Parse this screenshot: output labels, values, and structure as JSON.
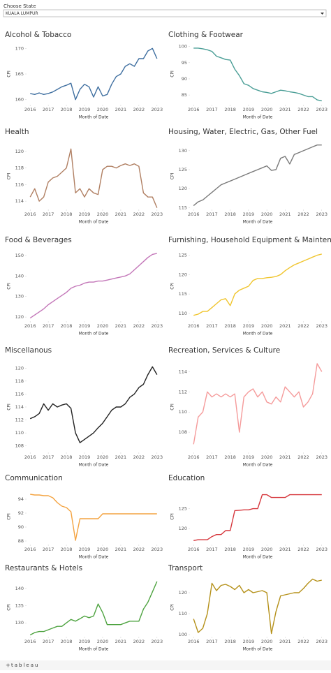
{
  "filter": {
    "label": "Choose State",
    "value": "KUALA LUMPUR"
  },
  "footer": "tableau",
  "chart_data": [
    {
      "type": "line",
      "title": "Alcohol & Tobacco",
      "x_label": "Month of Date",
      "y_label": "CPI",
      "color": "#3f6fa0",
      "xlim": [
        2015.8,
        2023.2
      ],
      "xticks": [
        2016,
        2017,
        2018,
        2019,
        2020,
        2021,
        2022,
        2023
      ],
      "ylim": [
        159,
        171
      ],
      "yticks": [
        160,
        165,
        170
      ],
      "x": [
        2016,
        2016.25,
        2016.5,
        2016.75,
        2017,
        2017.25,
        2017.5,
        2017.75,
        2018,
        2018.25,
        2018.5,
        2018.75,
        2019,
        2019.25,
        2019.5,
        2019.75,
        2020,
        2020.25,
        2020.5,
        2020.75,
        2021,
        2021.25,
        2021.5,
        2021.75,
        2022,
        2022.25,
        2022.5,
        2022.75,
        2023
      ],
      "values": [
        161.2,
        161,
        161.3,
        161,
        161.2,
        161.5,
        162,
        162.5,
        162.8,
        163.2,
        160,
        162,
        163,
        162.5,
        160.5,
        162.5,
        160.7,
        161,
        163,
        164.5,
        165,
        166.5,
        167,
        166.5,
        168,
        168,
        169.5,
        170,
        168
      ]
    },
    {
      "type": "line",
      "title": "Clothing & Footwear",
      "x_label": "Month of Date",
      "y_label": "CPI",
      "color": "#4a9e96",
      "xlim": [
        2015.8,
        2023.2
      ],
      "xticks": [
        2016,
        2017,
        2018,
        2019,
        2020,
        2021,
        2022,
        2023
      ],
      "ylim": [
        82,
        101
      ],
      "yticks": [
        85,
        90,
        95,
        100
      ],
      "x": [
        2016,
        2016.25,
        2016.5,
        2016.75,
        2017,
        2017.25,
        2017.5,
        2017.75,
        2018,
        2018.25,
        2018.5,
        2018.75,
        2019,
        2019.25,
        2019.5,
        2019.75,
        2020,
        2020.25,
        2020.5,
        2020.75,
        2021,
        2021.25,
        2021.5,
        2021.75,
        2022,
        2022.25,
        2022.5,
        2022.75,
        2023
      ],
      "values": [
        99.5,
        99.5,
        99.3,
        99,
        98.5,
        97,
        96.5,
        96,
        95.8,
        93,
        91,
        88.5,
        88,
        87,
        86.5,
        86,
        85.8,
        85.5,
        86,
        86.5,
        86.3,
        86,
        85.8,
        85.5,
        85,
        84.5,
        84.5,
        83.5,
        83.2
      ]
    },
    {
      "type": "line",
      "title": "Health",
      "x_label": "Month of Date",
      "y_label": "CPI",
      "color": "#b07f62",
      "xlim": [
        2015.8,
        2023.2
      ],
      "xticks": [
        2016,
        2017,
        2018,
        2019,
        2020,
        2021,
        2022,
        2023
      ],
      "ylim": [
        113,
        121
      ],
      "yticks": [
        114,
        116,
        118,
        120
      ],
      "x": [
        2016,
        2016.25,
        2016.5,
        2016.75,
        2017,
        2017.25,
        2017.5,
        2017.75,
        2018,
        2018.25,
        2018.5,
        2018.75,
        2019,
        2019.25,
        2019.5,
        2019.75,
        2020,
        2020.25,
        2020.5,
        2020.75,
        2021,
        2021.25,
        2021.5,
        2021.75,
        2022,
        2022.25,
        2022.5,
        2022.75,
        2023
      ],
      "values": [
        114.5,
        115.5,
        114,
        114.5,
        116.3,
        116.8,
        117,
        117.5,
        118,
        120.3,
        115,
        115.5,
        114.5,
        115.5,
        115,
        114.8,
        117.8,
        118.2,
        118.2,
        118,
        118.3,
        118.5,
        118.3,
        118.5,
        118.2,
        115,
        114.5,
        114.5,
        113.2
      ]
    },
    {
      "type": "line",
      "title": "Housing, Water, Electric, Gas, Other Fuel",
      "x_label": "Month of Date",
      "y_label": "CPI",
      "color": "#7a7a7a",
      "xlim": [
        2015.8,
        2023.2
      ],
      "xticks": [
        2016,
        2017,
        2018,
        2019,
        2020,
        2021,
        2022,
        2023
      ],
      "ylim": [
        114.5,
        132
      ],
      "yticks": [
        115,
        120,
        125,
        130
      ],
      "x": [
        2016,
        2016.25,
        2016.5,
        2016.75,
        2017,
        2017.25,
        2017.5,
        2017.75,
        2018,
        2018.25,
        2018.5,
        2018.75,
        2019,
        2019.25,
        2019.5,
        2019.75,
        2020,
        2020.25,
        2020.5,
        2020.75,
        2021,
        2021.25,
        2021.5,
        2021.75,
        2022,
        2022.25,
        2022.5,
        2022.75,
        2023
      ],
      "values": [
        115.5,
        116.5,
        117,
        118,
        119,
        120,
        121,
        121.5,
        122,
        122.5,
        123,
        123.5,
        124,
        124.5,
        125,
        125.5,
        126,
        124.8,
        125,
        128,
        128.5,
        126.5,
        129,
        129.5,
        130,
        130.5,
        131,
        131.5,
        131.5
      ]
    },
    {
      "type": "line",
      "title": "Food & Beverages",
      "x_label": "Month of Date",
      "y_label": "CPI",
      "color": "#c376b8",
      "xlim": [
        2015.8,
        2023.2
      ],
      "xticks": [
        2016,
        2017,
        2018,
        2019,
        2020,
        2021,
        2022,
        2023
      ],
      "ylim": [
        118,
        152
      ],
      "yticks": [
        120,
        130,
        140,
        150
      ],
      "x": [
        2016,
        2016.25,
        2016.5,
        2016.75,
        2017,
        2017.25,
        2017.5,
        2017.75,
        2018,
        2018.25,
        2018.5,
        2018.75,
        2019,
        2019.25,
        2019.5,
        2019.75,
        2020,
        2020.25,
        2020.5,
        2020.75,
        2021,
        2021.25,
        2021.5,
        2021.75,
        2022,
        2022.25,
        2022.5,
        2022.75,
        2023
      ],
      "values": [
        119.5,
        121,
        122.5,
        124,
        126,
        127.5,
        129,
        130.5,
        132,
        134,
        135,
        135.5,
        136.5,
        137,
        137,
        137.5,
        137.5,
        138,
        138.5,
        139,
        139.5,
        140,
        141,
        143,
        145,
        147,
        149,
        150.5,
        151
      ]
    },
    {
      "type": "line",
      "title": "Furnishing, Household Equipment & Maintenance",
      "x_label": "Month of Date",
      "y_label": "CPI",
      "color": "#f0c52e",
      "xlim": [
        2015.8,
        2023.2
      ],
      "xticks": [
        2016,
        2017,
        2018,
        2019,
        2020,
        2021,
        2022,
        2023
      ],
      "ylim": [
        108,
        126
      ],
      "yticks": [
        110,
        115,
        120,
        125
      ],
      "x": [
        2016,
        2016.25,
        2016.5,
        2016.75,
        2017,
        2017.25,
        2017.5,
        2017.75,
        2018,
        2018.25,
        2018.5,
        2018.75,
        2019,
        2019.25,
        2019.5,
        2019.75,
        2020,
        2020.25,
        2020.5,
        2020.75,
        2021,
        2021.25,
        2021.5,
        2021.75,
        2022,
        2022.25,
        2022.5,
        2022.75,
        2023
      ],
      "values": [
        109.5,
        109.8,
        110.5,
        110.5,
        111.5,
        112.5,
        113.5,
        113.8,
        112,
        115,
        116,
        116.5,
        117,
        118.5,
        119,
        119,
        119.2,
        119.3,
        119.5,
        120,
        121,
        121.8,
        122.5,
        123,
        123.5,
        124,
        124.5,
        125,
        125.3
      ]
    },
    {
      "type": "line",
      "title": "Miscellanous",
      "x_label": "Month of Date",
      "y_label": "CPI",
      "color": "#222222",
      "xlim": [
        2015.8,
        2023.2
      ],
      "xticks": [
        2016,
        2017,
        2018,
        2019,
        2020,
        2021,
        2022,
        2023
      ],
      "ylim": [
        107,
        121
      ],
      "yticks": [
        108,
        110,
        112,
        114,
        116,
        118,
        120
      ],
      "x": [
        2016,
        2016.25,
        2016.5,
        2016.75,
        2017,
        2017.25,
        2017.5,
        2017.75,
        2018,
        2018.25,
        2018.5,
        2018.75,
        2019,
        2019.25,
        2019.5,
        2019.75,
        2020,
        2020.25,
        2020.5,
        2020.75,
        2021,
        2021.25,
        2021.5,
        2021.75,
        2022,
        2022.25,
        2022.5,
        2022.75,
        2023
      ],
      "values": [
        112.2,
        112.5,
        113,
        114.5,
        113.5,
        114.5,
        114,
        114.3,
        114.5,
        113.8,
        110,
        108.5,
        109,
        109.5,
        110,
        110.8,
        111.5,
        112.5,
        113.5,
        114,
        114,
        114.5,
        115.5,
        116,
        117,
        117.5,
        119,
        120.2,
        119
      ]
    },
    {
      "type": "line",
      "title": "Recreation, Services & Culture",
      "x_label": "Month of Date",
      "y_label": "CPI",
      "color": "#f59b9b",
      "xlim": [
        2015.8,
        2023.2
      ],
      "xticks": [
        2016,
        2017,
        2018,
        2019,
        2020,
        2021,
        2022,
        2023
      ],
      "ylim": [
        106,
        115
      ],
      "yticks": [
        108,
        110,
        112,
        114
      ],
      "x": [
        2016,
        2016.25,
        2016.5,
        2016.75,
        2017,
        2017.25,
        2017.5,
        2017.75,
        2018,
        2018.25,
        2018.5,
        2018.75,
        2019,
        2019.25,
        2019.5,
        2019.75,
        2020,
        2020.25,
        2020.5,
        2020.75,
        2021,
        2021.25,
        2021.5,
        2021.75,
        2022,
        2022.25,
        2022.5,
        2022.75,
        2023
      ],
      "values": [
        106.8,
        109.5,
        110,
        112,
        111.5,
        111.8,
        111.5,
        111.8,
        111.5,
        111.8,
        108,
        111.5,
        112,
        112.3,
        111.5,
        112,
        111,
        110.8,
        111.5,
        111,
        112.5,
        112,
        111.5,
        112,
        110.5,
        111,
        111.8,
        114.8,
        114
      ]
    },
    {
      "type": "line",
      "title": "Communication",
      "x_label": "Month of Date",
      "y_label": "CPI",
      "color": "#f4a340",
      "xlim": [
        2015.8,
        2023.2
      ],
      "xticks": [
        2016,
        2017,
        2018,
        2019,
        2020,
        2021,
        2022,
        2023
      ],
      "ylim": [
        87.5,
        95.5
      ],
      "yticks": [
        88,
        90,
        92,
        94
      ],
      "x": [
        2016,
        2016.25,
        2016.5,
        2016.75,
        2017,
        2017.25,
        2017.5,
        2017.75,
        2018,
        2018.25,
        2018.5,
        2018.75,
        2019,
        2019.25,
        2019.5,
        2019.75,
        2020,
        2020.25,
        2020.5,
        2020.75,
        2021,
        2021.25,
        2021.5,
        2021.75,
        2022,
        2022.25,
        2022.5,
        2022.75,
        2023
      ],
      "values": [
        94.7,
        94.6,
        94.6,
        94.5,
        94.5,
        94.2,
        93.5,
        93.0,
        92.8,
        92.2,
        88.1,
        91.2,
        91.2,
        91.2,
        91.2,
        91.2,
        91.9,
        91.9,
        91.9,
        91.9,
        91.9,
        91.9,
        91.9,
        91.9,
        91.9,
        91.9,
        91.9,
        91.9,
        91.9
      ]
    },
    {
      "type": "line",
      "title": "Education",
      "x_label": "Month of Date",
      "y_label": "CPI",
      "color": "#d6373d",
      "xlim": [
        2015.8,
        2023.2
      ],
      "xticks": [
        2016,
        2017,
        2018,
        2019,
        2020,
        2021,
        2022,
        2023
      ],
      "ylim": [
        116,
        130
      ],
      "yticks": [
        120,
        125
      ],
      "x": [
        2016,
        2016.25,
        2016.5,
        2016.75,
        2017,
        2017.25,
        2017.5,
        2017.75,
        2018,
        2018.25,
        2018.5,
        2018.75,
        2019,
        2019.25,
        2019.5,
        2019.75,
        2020,
        2020.25,
        2020.5,
        2020.75,
        2021,
        2021.25,
        2021.5,
        2021.75,
        2022,
        2022.25,
        2022.5,
        2022.75,
        2023
      ],
      "values": [
        117,
        117.2,
        117.2,
        117.2,
        118,
        118.5,
        118.5,
        119.5,
        119.5,
        124.5,
        124.6,
        124.7,
        124.7,
        125,
        125,
        128.5,
        128.5,
        127.8,
        127.8,
        127.8,
        127.8,
        128.5,
        128.5,
        128.5,
        128.5,
        128.5,
        128.5,
        128.5,
        128.5
      ]
    },
    {
      "type": "line",
      "title": "Restaurants & Hotels",
      "x_label": "Month of Date",
      "y_label": "CPI",
      "color": "#4ea340",
      "xlim": [
        2015.8,
        2023.2
      ],
      "xticks": [
        2016,
        2017,
        2018,
        2019,
        2020,
        2021,
        2022,
        2023
      ],
      "ylim": [
        126,
        143
      ],
      "yticks": [
        130,
        135,
        140
      ],
      "x": [
        2016,
        2016.25,
        2016.5,
        2016.75,
        2017,
        2017.25,
        2017.5,
        2017.75,
        2018,
        2018.25,
        2018.5,
        2018.75,
        2019,
        2019.25,
        2019.5,
        2019.75,
        2020,
        2020.25,
        2020.5,
        2020.75,
        2021,
        2021.25,
        2021.5,
        2021.75,
        2022,
        2022.25,
        2022.5,
        2022.75,
        2023
      ],
      "values": [
        126.5,
        127.2,
        127.5,
        127.5,
        128,
        128.5,
        129,
        129,
        130,
        131,
        130.5,
        131.2,
        132,
        131.5,
        132,
        135.5,
        133,
        129.5,
        129.5,
        129.5,
        129.5,
        130,
        130.5,
        130.5,
        130.5,
        134,
        136,
        139,
        142
      ]
    },
    {
      "type": "line",
      "title": "Transport",
      "x_label": "Month of Date",
      "y_label": "CPI",
      "color": "#b5911a",
      "xlim": [
        2015.8,
        2023.2
      ],
      "xticks": [
        2016,
        2017,
        2018,
        2019,
        2020,
        2021,
        2022,
        2023
      ],
      "ylim": [
        99,
        127
      ],
      "yticks": [
        100,
        110,
        120
      ],
      "x": [
        2016,
        2016.25,
        2016.5,
        2016.75,
        2017,
        2017.25,
        2017.5,
        2017.75,
        2018,
        2018.25,
        2018.5,
        2018.75,
        2019,
        2019.25,
        2019.5,
        2019.75,
        2020,
        2020.25,
        2020.5,
        2020.75,
        2021,
        2021.25,
        2021.5,
        2021.75,
        2022,
        2022.25,
        2022.5,
        2022.75,
        2023
      ],
      "values": [
        107.5,
        101,
        103,
        110,
        124.5,
        121,
        123.5,
        124,
        123,
        121.5,
        123.5,
        120,
        121.5,
        120,
        120.5,
        121,
        120,
        100.5,
        111,
        118.5,
        119,
        119.5,
        120,
        120,
        122,
        124.5,
        126.5,
        125.5,
        126
      ]
    }
  ]
}
